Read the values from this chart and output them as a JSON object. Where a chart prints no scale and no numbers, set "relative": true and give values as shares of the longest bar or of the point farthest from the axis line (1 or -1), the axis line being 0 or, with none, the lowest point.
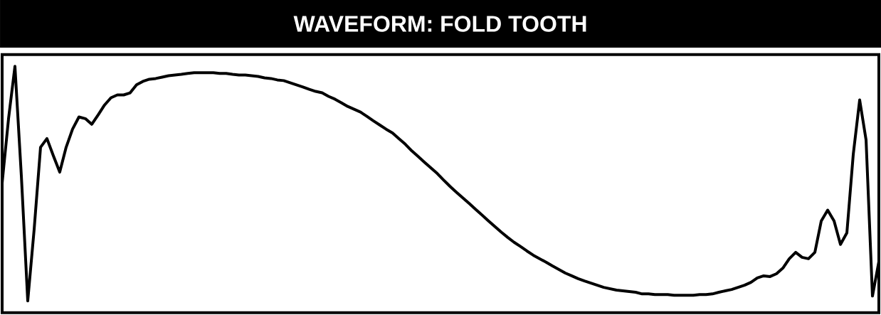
{
  "chart_data": {
    "type": "line",
    "title": "WAVEFORM: FOLD TOOTH",
    "relative": true,
    "tick_labels": false,
    "marker": "none",
    "line_style": "solid",
    "categories": [
      null,
      null,
      null,
      null,
      null,
      null,
      null,
      null,
      null,
      null,
      null,
      null,
      null,
      null,
      null,
      null,
      null,
      null,
      null,
      null,
      null,
      null,
      null,
      null,
      null,
      null,
      null,
      null,
      null,
      null,
      null,
      null,
      null,
      null,
      null,
      null,
      null,
      null,
      null,
      null,
      null,
      null,
      null,
      null,
      null,
      null,
      null,
      null,
      null,
      null,
      null,
      null,
      null,
      null,
      null,
      null,
      null,
      null,
      null,
      null,
      null,
      null,
      null,
      null,
      null,
      null,
      null,
      null,
      null,
      null,
      null,
      null,
      null,
      null,
      null,
      null,
      null,
      null,
      null,
      null,
      null,
      null,
      null,
      null,
      null,
      null,
      null,
      null,
      null,
      null,
      null,
      null,
      null,
      null,
      null,
      null,
      null,
      null,
      null,
      null,
      null,
      null,
      null,
      null,
      null,
      null,
      null,
      null,
      null,
      null,
      null,
      null,
      null,
      null,
      null,
      null,
      null,
      null,
      null,
      null,
      null,
      null,
      null,
      null,
      null,
      null,
      null,
      null,
      null,
      null,
      null,
      null,
      null,
      null,
      null,
      null,
      null,
      null
    ],
    "series": [
      {
        "color": "#000000",
        "values": [
          0.503,
          0.777,
          1.0,
          0.534,
          0,
          0.305,
          0.655,
          0.692,
          0.619,
          0.549,
          0.655,
          0.732,
          0.784,
          0.777,
          0.753,
          0.793,
          0.835,
          0.866,
          0.878,
          0.878,
          0.887,
          0.921,
          0.936,
          0.945,
          0.948,
          0.954,
          0.96,
          0.963,
          0.966,
          0.97,
          0.973,
          0.973,
          0.973,
          0.973,
          0.97,
          0.97,
          0.966,
          0.963,
          0.963,
          0.96,
          0.957,
          0.951,
          0.948,
          0.942,
          0.939,
          0.93,
          0.921,
          0.912,
          0.902,
          0.893,
          0.887,
          0.872,
          0.86,
          0.845,
          0.829,
          0.817,
          0.805,
          0.787,
          0.768,
          0.75,
          0.732,
          0.716,
          0.692,
          0.668,
          0.64,
          0.616,
          0.591,
          0.567,
          0.543,
          0.515,
          0.488,
          0.463,
          0.439,
          0.415,
          0.39,
          0.366,
          0.341,
          0.317,
          0.293,
          0.271,
          0.25,
          0.232,
          0.213,
          0.195,
          0.18,
          0.165,
          0.149,
          0.134,
          0.119,
          0.107,
          0.095,
          0.085,
          0.076,
          0.067,
          0.058,
          0.052,
          0.046,
          0.043,
          0.04,
          0.037,
          0.03,
          0.03,
          0.027,
          0.027,
          0.027,
          0.024,
          0.024,
          0.024,
          0.024,
          0.027,
          0.027,
          0.03,
          0.037,
          0.043,
          0.049,
          0.058,
          0.067,
          0.079,
          0.098,
          0.107,
          0.104,
          0.116,
          0.14,
          0.18,
          0.207,
          0.186,
          0.18,
          0.207,
          0.341,
          0.387,
          0.341,
          0.241,
          0.29,
          0.625,
          0.857,
          0.686,
          0.021,
          0.168
        ]
      }
    ]
  }
}
